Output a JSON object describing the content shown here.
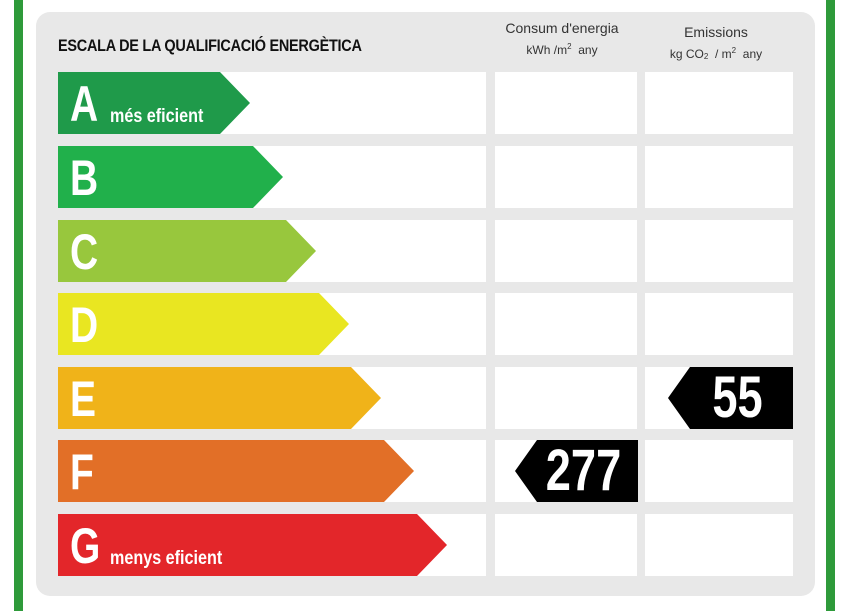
{
  "title": "ESCALA DE LA QUALIFICACIÓ ENERGÈTICA",
  "columns": {
    "energy": {
      "label": "Consum d'energia",
      "unit_prefix": "kWh /m",
      "unit_sup": "2",
      "unit_suffix": "any"
    },
    "emissions": {
      "label": "Emissions",
      "unit_prefix": "kg CO",
      "unit_sub": "2",
      "unit_mid": "/ m",
      "unit_sup": "2",
      "unit_suffix": "any"
    }
  },
  "ratings": [
    {
      "letter": "A",
      "sublabel": "més eficient",
      "color": "#1f9a4a"
    },
    {
      "letter": "B",
      "sublabel": "",
      "color": "#21b04b"
    },
    {
      "letter": "C",
      "sublabel": "",
      "color": "#98c73d"
    },
    {
      "letter": "D",
      "sublabel": "",
      "color": "#e9e621"
    },
    {
      "letter": "E",
      "sublabel": "",
      "color": "#f0b319"
    },
    {
      "letter": "F",
      "sublabel": "",
      "color": "#e26f27"
    },
    {
      "letter": "G",
      "sublabel": "menys eficient",
      "color": "#e3262a"
    }
  ],
  "energy_value": {
    "value": "277",
    "rating": "F"
  },
  "emissions_value": {
    "value": "55",
    "rating": "E"
  },
  "colors": {
    "frame_green": "#2e9a3a",
    "panel": "#e8e8e8",
    "tag": "#000000"
  }
}
